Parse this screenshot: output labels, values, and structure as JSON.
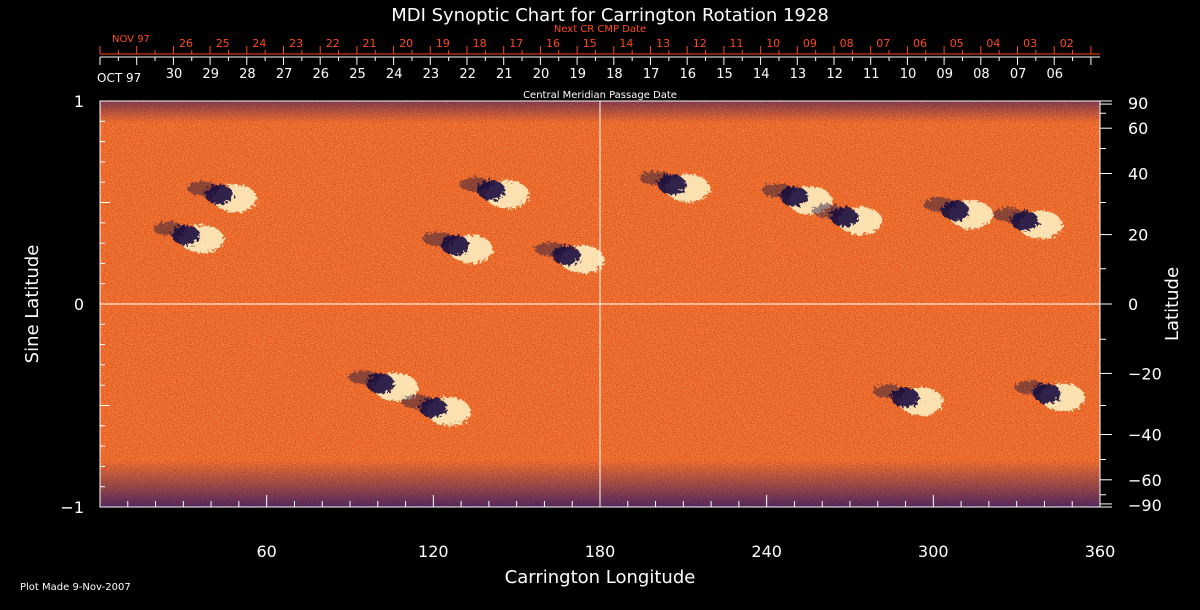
{
  "chart_data": {
    "type": "heatmap",
    "title": "MDI Synoptic Chart for Carrington Rotation 1928",
    "xlabel": "Carrington Longitude",
    "ylabel_left": "Sine Latitude",
    "ylabel_right": "Latitude",
    "xlim": [
      0,
      360
    ],
    "ylim": [
      -1,
      1
    ],
    "x_ticks": [
      60,
      120,
      180,
      240,
      300,
      360
    ],
    "y_ticks_left": [
      {
        "value": 1,
        "label": "1"
      },
      {
        "value": 0,
        "label": "0"
      },
      {
        "value": -1,
        "label": "−1"
      }
    ],
    "y_ticks_right_deg": [
      90,
      60,
      40,
      20,
      0,
      -20,
      -40,
      -60,
      -90
    ],
    "y_tick_labels_right": [
      "90",
      "60",
      "40",
      "20",
      "0",
      "−20",
      "−40",
      "−60",
      "−90"
    ],
    "next_cr_axis": {
      "title": "Next CR CMP Date",
      "month_label": "NOV 97",
      "day_labels": [
        "26",
        "25",
        "24",
        "23",
        "22",
        "21",
        "20",
        "19",
        "18",
        "17",
        "16",
        "15",
        "14",
        "13",
        "12",
        "11",
        "10",
        "09",
        "08",
        "07",
        "06",
        "05",
        "04",
        "03",
        "02"
      ]
    },
    "cmp_axis": {
      "title": "Central Meridian Passage Date",
      "month_label": "OCT 97",
      "day_labels": [
        "30",
        "29",
        "28",
        "27",
        "26",
        "25",
        "24",
        "23",
        "22",
        "21",
        "20",
        "19",
        "18",
        "17",
        "16",
        "15",
        "14",
        "13",
        "12",
        "11",
        "10",
        "09",
        "08",
        "07",
        "06"
      ]
    },
    "colors": {
      "background_field": "#e8501a",
      "positive_polarity": "#fff6c8",
      "negative_polarity": "#1a1040",
      "axis_labels": "#ffffff",
      "next_cr_labels": "#ff4a1a"
    },
    "active_regions": [
      {
        "lon": 33,
        "sinlat": 0.33,
        "polarity_lead": "negative"
      },
      {
        "lon": 45,
        "sinlat": 0.53,
        "polarity_lead": "negative"
      },
      {
        "lon": 130,
        "sinlat": 0.28,
        "polarity_lead": "negative"
      },
      {
        "lon": 143,
        "sinlat": 0.55,
        "polarity_lead": "negative"
      },
      {
        "lon": 170,
        "sinlat": 0.23,
        "polarity_lead": "negative"
      },
      {
        "lon": 103,
        "sinlat": -0.4,
        "polarity_lead": "negative"
      },
      {
        "lon": 122,
        "sinlat": -0.52,
        "polarity_lead": "negative"
      },
      {
        "lon": 208,
        "sinlat": 0.58,
        "polarity_lead": "negative"
      },
      {
        "lon": 252,
        "sinlat": 0.52,
        "polarity_lead": "negative"
      },
      {
        "lon": 270,
        "sinlat": 0.42,
        "polarity_lead": "negative"
      },
      {
        "lon": 310,
        "sinlat": 0.45,
        "polarity_lead": "negative"
      },
      {
        "lon": 335,
        "sinlat": 0.4,
        "polarity_lead": "negative"
      },
      {
        "lon": 292,
        "sinlat": -0.47,
        "polarity_lead": "negative"
      },
      {
        "lon": 343,
        "sinlat": -0.45,
        "polarity_lead": "negative"
      }
    ]
  },
  "footer": {
    "plot_made": "Plot Made  9-Nov-2007"
  }
}
